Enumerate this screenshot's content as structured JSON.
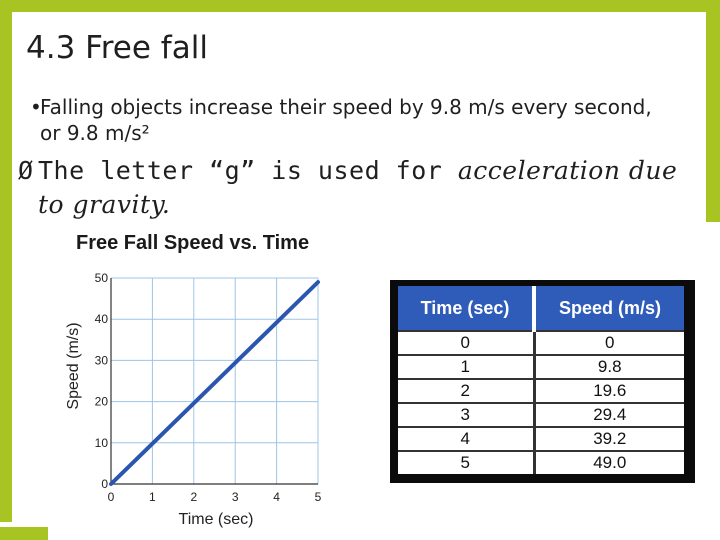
{
  "slide": {
    "title": "4.3 Free fall",
    "bullet1_marker": "•",
    "bullet1": "Falling objects increase their speed by 9.8 m/s every second, or 9.8 m/s²",
    "bullet2_marker": "Ø",
    "bullet2_plain": "The letter “g” is used for ",
    "bullet2_italic": "acceleration due to gravity."
  },
  "colors": {
    "accent": "#a8c422",
    "line": "#2a56b0",
    "table_header": "#2e5cb8"
  },
  "chart_data": {
    "type": "line",
    "title": "Free Fall Speed vs. Time",
    "xlabel": "Time (sec)",
    "ylabel": "Speed (m/s)",
    "xlim": [
      0,
      5
    ],
    "ylim": [
      0,
      50
    ],
    "xticks": [
      "0",
      "1",
      "2",
      "3",
      "4",
      "5"
    ],
    "yticks": [
      "0",
      "10",
      "20",
      "30",
      "40",
      "50"
    ],
    "grid": true,
    "x": [
      0,
      5
    ],
    "y": [
      0,
      49
    ]
  },
  "table": {
    "headers": [
      "Time (sec)",
      "Speed (m/s)"
    ],
    "rows": [
      [
        "0",
        "0"
      ],
      [
        "1",
        "9.8"
      ],
      [
        "2",
        "19.6"
      ],
      [
        "3",
        "29.4"
      ],
      [
        "4",
        "39.2"
      ],
      [
        "5",
        "49.0"
      ]
    ]
  }
}
